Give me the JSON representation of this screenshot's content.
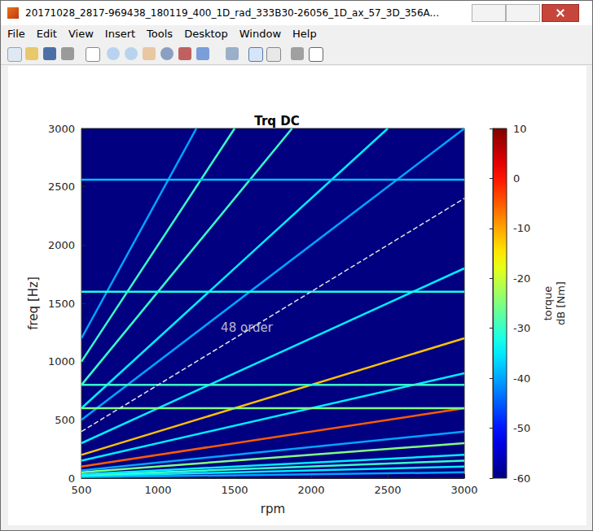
{
  "window": {
    "title": "20171028_2817-969438_180119_400_1D_rad_333B30-26056_1D_ax_57_3D_356A...",
    "menu": [
      "File",
      "Edit",
      "View",
      "Insert",
      "Tools",
      "Desktop",
      "Window",
      "Help"
    ]
  },
  "chart_data": {
    "type": "line",
    "title": "Trq DC",
    "x_label": "rpm",
    "y_label": "freq [Hz]",
    "xlim": [
      500,
      3000
    ],
    "xticks": [
      500,
      1000,
      1500,
      2000,
      2500,
      3000
    ],
    "ylim": [
      0,
      3000
    ],
    "yticks": [
      0,
      500,
      1000,
      1500,
      2000,
      2500,
      3000
    ],
    "grid": false,
    "background": -60,
    "colorbar": {
      "label": [
        "torque",
        "dB [Nm]"
      ],
      "lim": [
        -60,
        10
      ],
      "ticks": [
        -60,
        -50,
        -40,
        -30,
        -20,
        -10,
        0,
        10
      ]
    },
    "series": [
      {
        "x": [
          500,
          3000
        ],
        "values": [
          8,
          50
        ],
        "db": -40
      },
      {
        "x": [
          500,
          3000
        ],
        "values": [
          17,
          100
        ],
        "db": -35
      },
      {
        "x": [
          500,
          3000
        ],
        "values": [
          25,
          150
        ],
        "db": -30
      },
      {
        "x": [
          500,
          3000
        ],
        "values": [
          33,
          200
        ],
        "db": -35
      },
      {
        "x": [
          500,
          3000
        ],
        "values": [
          50,
          300
        ],
        "db": -25
      },
      {
        "x": [
          500,
          3000
        ],
        "values": [
          67,
          400
        ],
        "db": -40
      },
      {
        "x": [
          500,
          3000
        ],
        "values": [
          100,
          600
        ],
        "db": -5
      },
      {
        "x": [
          500,
          3000
        ],
        "values": [
          150,
          900
        ],
        "db": -35
      },
      {
        "x": [
          500,
          3000
        ],
        "values": [
          200,
          1200
        ],
        "db": -12
      },
      {
        "x": [
          500,
          3000
        ],
        "values": [
          300,
          1800
        ],
        "db": -35
      },
      {
        "x": [
          500,
          3000
        ],
        "values": [
          500,
          3000
        ],
        "db": -40
      },
      {
        "x": [
          500,
          2500
        ],
        "values": [
          600,
          3000
        ],
        "db": -35
      },
      {
        "x": [
          500,
          1875
        ],
        "values": [
          800,
          3000
        ],
        "db": -30
      },
      {
        "x": [
          500,
          1500
        ],
        "values": [
          1000,
          3000
        ],
        "db": -30
      },
      {
        "x": [
          500,
          1250
        ],
        "values": [
          1200,
          3000
        ],
        "db": -40
      },
      {
        "x": [
          500,
          3000
        ],
        "values": [
          600,
          600
        ],
        "db": -25
      },
      {
        "x": [
          500,
          3000
        ],
        "values": [
          800,
          800
        ],
        "db": -30
      },
      {
        "x": [
          500,
          3000
        ],
        "values": [
          1600,
          1600
        ],
        "db": -32
      },
      {
        "x": [
          500,
          3000
        ],
        "values": [
          2560,
          2560
        ],
        "db": -38
      }
    ],
    "annotations": [
      {
        "text": "48 order",
        "x": 1580,
        "y": 1290,
        "line_x": [
          500,
          3000
        ],
        "line_values": [
          400,
          2400
        ],
        "line_style": "dashed",
        "color": "#e6e6e6"
      }
    ]
  }
}
